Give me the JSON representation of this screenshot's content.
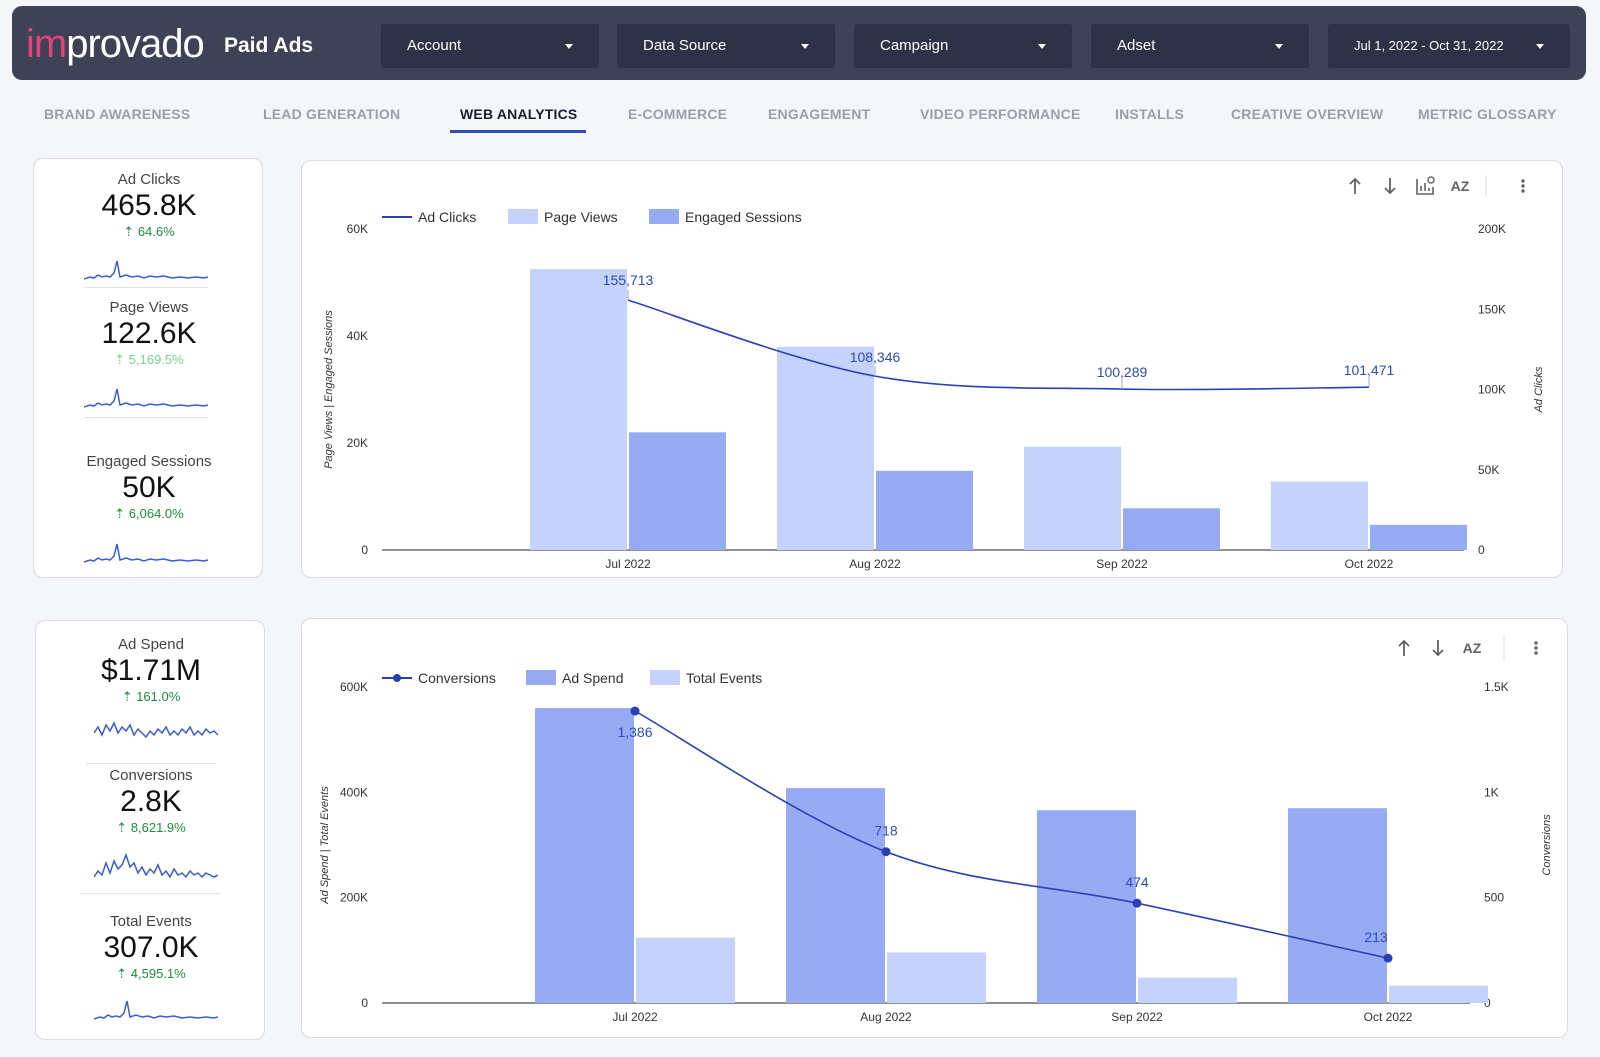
{
  "header": {
    "logo_accent": "im",
    "logo_rest": "provado",
    "title": "Paid Ads",
    "filters": [
      "Account",
      "Data Source",
      "Campaign",
      "Adset"
    ],
    "date_range": "Jul 1, 2022 - Oct 31, 2022"
  },
  "tabs": [
    "BRAND AWARENESS",
    "LEAD GENERATION",
    "WEB ANALYTICS",
    "E-COMMERCE",
    "ENGAGEMENT",
    "VIDEO PERFORMANCE",
    "INSTALLS",
    "CREATIVE OVERVIEW",
    "METRIC GLOSSARY"
  ],
  "active_tab": "WEB ANALYTICS",
  "kpis_top": [
    {
      "label": "Ad Clicks",
      "value": "465.8K",
      "delta": "64.6%"
    },
    {
      "label": "Page Views",
      "value": "122.6K",
      "delta": "5,169.5%"
    },
    {
      "label": "Engaged Sessions",
      "value": "50K",
      "delta": "6,064.0%"
    }
  ],
  "kpis_bottom": [
    {
      "label": "Ad Spend",
      "value": "$1.71M",
      "delta": "161.0%"
    },
    {
      "label": "Conversions",
      "value": "2.8K",
      "delta": "8,621.9%"
    },
    {
      "label": "Total Events",
      "value": "307.0K",
      "delta": "4,595.1%"
    }
  ],
  "icons": [
    "sort-ascending-icon",
    "sort-descending-icon",
    "chart-settings-icon",
    "sort-az-icon",
    "more-vert-icon"
  ],
  "colors": {
    "header": "#3d4257",
    "logo_accent": "#e6427a",
    "light_bar": "#c5d2fb",
    "mid_bar": "#97abf5",
    "line": "#2940b5",
    "positive": "#1e8e3e"
  },
  "chart_data": [
    {
      "type": "bar",
      "categories": [
        "Jul 2022",
        "Aug 2022",
        "Sep 2022",
        "Oct 2022"
      ],
      "series": [
        {
          "name": "Ad Clicks",
          "kind": "line",
          "axis": "right",
          "values": [
            155713,
            108346,
            100289,
            101471
          ],
          "labels": [
            "155,713",
            "108,346",
            "100,289",
            "101,471"
          ]
        },
        {
          "name": "Page Views",
          "kind": "bar",
          "axis": "left",
          "values": [
            52500,
            38000,
            19300,
            12800
          ]
        },
        {
          "name": "Engaged Sessions",
          "kind": "bar",
          "axis": "left",
          "values": [
            22000,
            14800,
            7800,
            4700
          ]
        }
      ],
      "ylabel": "Page Views | Engaged Sessions",
      "y2label": "Ad Clicks",
      "ylim": [
        0,
        60000
      ],
      "y2lim": [
        0,
        200000
      ],
      "yticks": [
        "0",
        "20K",
        "40K",
        "60K"
      ],
      "y2ticks": [
        "0",
        "50K",
        "100K",
        "150K",
        "200K"
      ],
      "legend": "top-left"
    },
    {
      "type": "bar",
      "categories": [
        "Jul 2022",
        "Aug 2022",
        "Sep 2022",
        "Oct 2022"
      ],
      "series": [
        {
          "name": "Conversions",
          "kind": "line",
          "axis": "right",
          "values": [
            1386,
            718,
            474,
            213
          ],
          "labels": [
            "1,386",
            "718",
            "474",
            "213"
          ]
        },
        {
          "name": "Ad Spend",
          "kind": "bar",
          "axis": "left",
          "values": [
            560000,
            408000,
            366000,
            370000
          ]
        },
        {
          "name": "Total Events",
          "kind": "bar",
          "axis": "left",
          "values": [
            124000,
            96000,
            48000,
            33000
          ]
        }
      ],
      "ylabel": "Ad Spend | Total Events",
      "y2label": "Conversions",
      "ylim": [
        0,
        600000
      ],
      "y2lim": [
        0,
        1500
      ],
      "yticks": [
        "0",
        "200K",
        "400K",
        "600K"
      ],
      "y2ticks": [
        "0",
        "500",
        "1K",
        "1.5K"
      ],
      "legend": "top-left"
    }
  ]
}
